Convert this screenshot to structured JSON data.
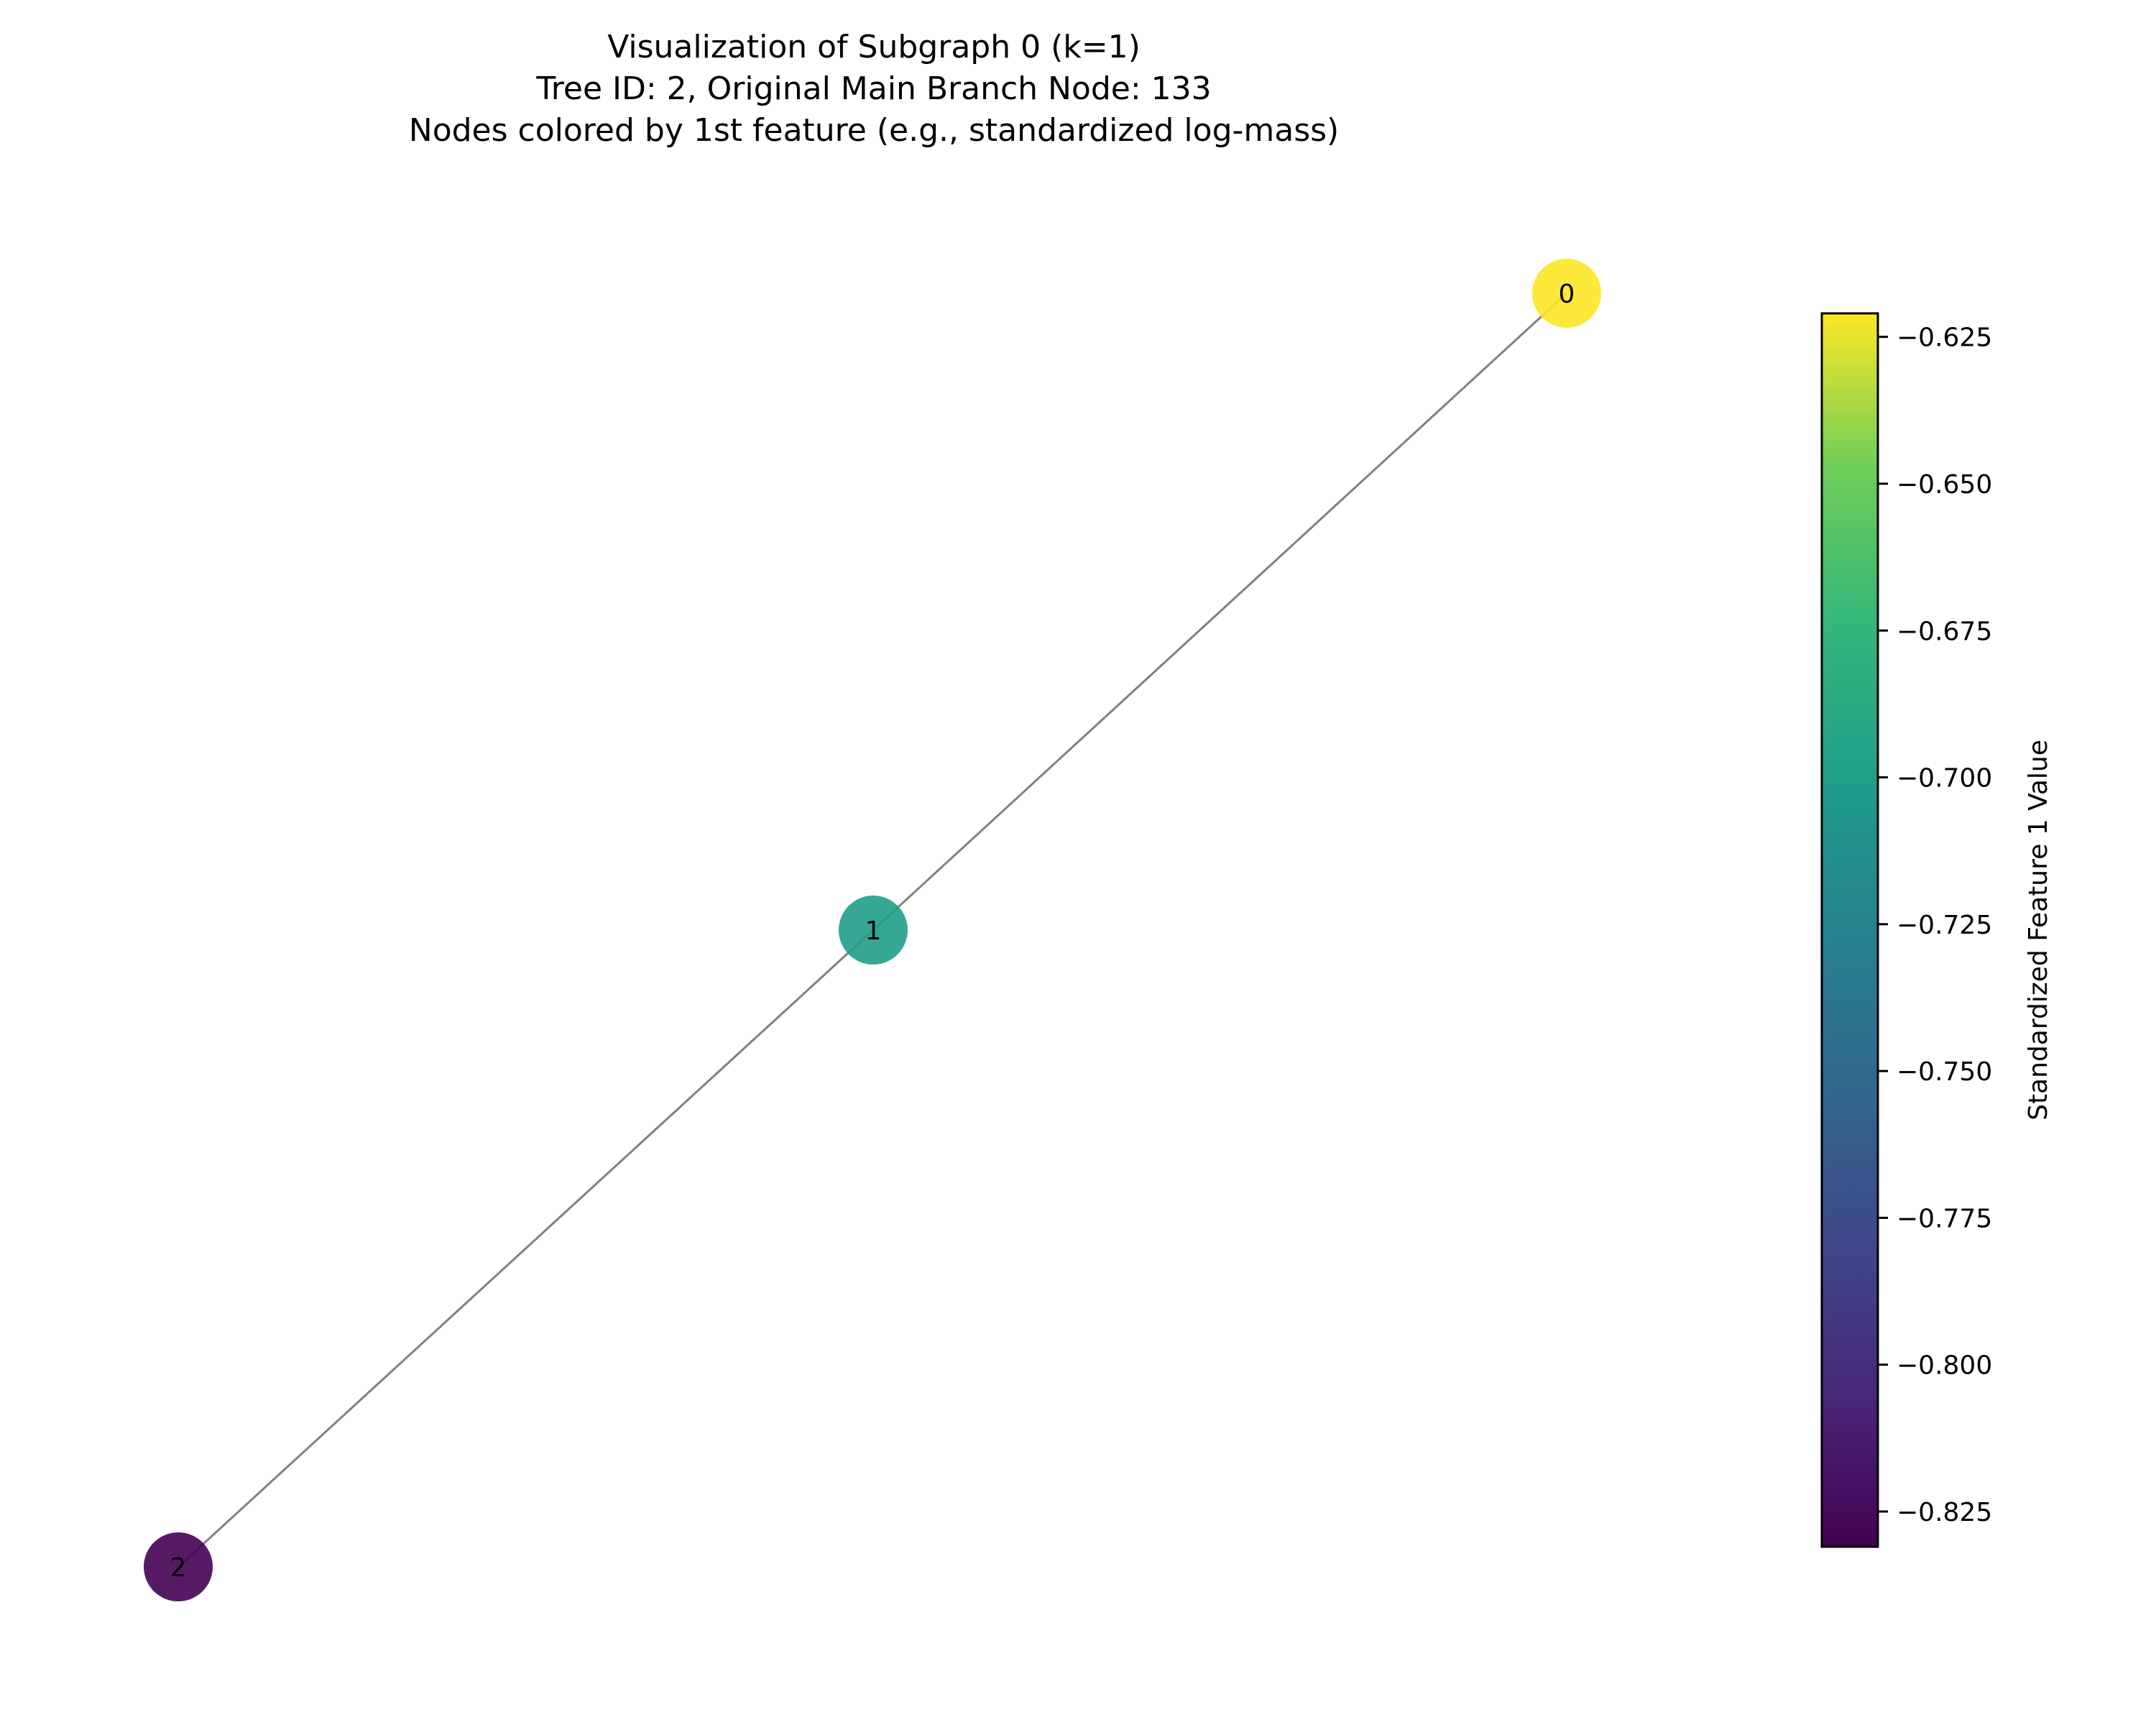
{
  "title": {
    "line1": "Visualization of Subgraph 0 (k=1)",
    "line2": "Tree ID: 2, Original Main Branch Node: 133",
    "line3": "Nodes colored by 1st feature (e.g., standardized log-mass)"
  },
  "colorbar": {
    "label": "Standardized Feature 1 Value",
    "colormap": "viridis",
    "range": [
      -0.831,
      -0.621
    ],
    "ticks": [
      {
        "value": -0.625,
        "label": "−0.625"
      },
      {
        "value": -0.65,
        "label": "−0.650"
      },
      {
        "value": -0.675,
        "label": "−0.675"
      },
      {
        "value": -0.7,
        "label": "−0.700"
      },
      {
        "value": -0.725,
        "label": "−0.725"
      },
      {
        "value": -0.75,
        "label": "−0.750"
      },
      {
        "value": -0.775,
        "label": "−0.775"
      },
      {
        "value": -0.8,
        "label": "−0.800"
      },
      {
        "value": -0.825,
        "label": "−0.825"
      }
    ]
  },
  "graph": {
    "nodes": [
      {
        "id": "0",
        "label": "0",
        "feature1": -0.622,
        "color": "#fde725"
      },
      {
        "id": "1",
        "label": "1",
        "feature1": -0.721,
        "color": "#1f9e89"
      },
      {
        "id": "2",
        "label": "2",
        "feature1": -0.83,
        "color": "#440154"
      }
    ],
    "edges": [
      {
        "source": "0",
        "target": "1"
      },
      {
        "source": "1",
        "target": "2"
      }
    ],
    "edge_color": "#808080"
  }
}
